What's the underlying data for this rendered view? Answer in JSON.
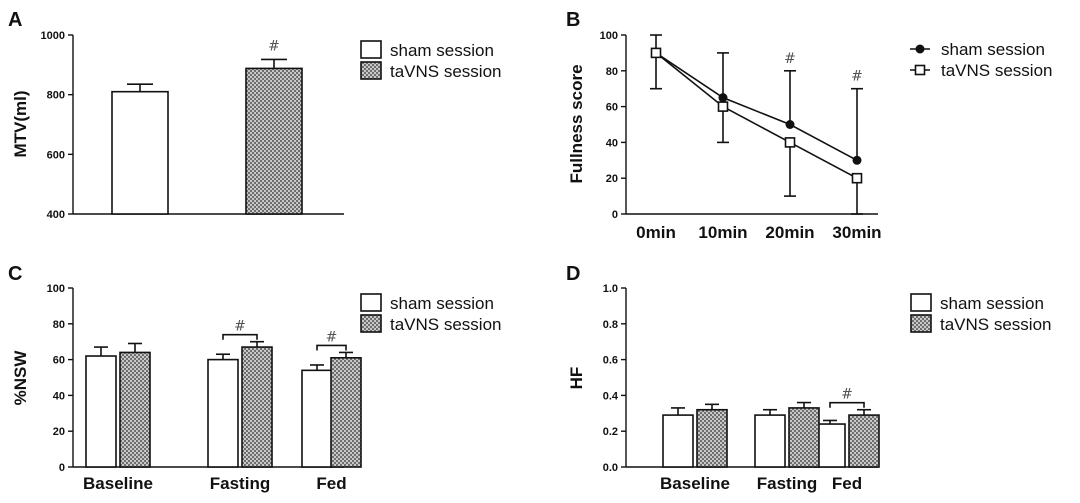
{
  "colors": {
    "ink": "#111111",
    "hatch": "#8a8a8a",
    "sig": "#555555"
  },
  "legend": {
    "sham": "sham session",
    "tavns": "taVNS session"
  },
  "sig_mark": "#",
  "panels": {
    "A": {
      "letter": "A"
    },
    "B": {
      "letter": "B"
    },
    "C": {
      "letter": "C"
    },
    "D": {
      "letter": "D"
    }
  },
  "chart_data": [
    {
      "panel": "A",
      "type": "bar",
      "ylabel": "MTV(ml)",
      "ylim": [
        400,
        1000
      ],
      "yticks": [
        400,
        600,
        800,
        1000
      ],
      "categories": [
        ""
      ],
      "series": [
        {
          "name": "sham session",
          "values": [
            810
          ],
          "errors": [
            25
          ]
        },
        {
          "name": "taVNS session",
          "values": [
            888
          ],
          "errors": [
            30
          ]
        }
      ],
      "annotations": [
        {
          "text": "#",
          "series": "taVNS session",
          "category": 0
        }
      ]
    },
    {
      "panel": "B",
      "type": "line",
      "ylabel": "Fullness score",
      "ylim": [
        0,
        100
      ],
      "yticks": [
        0,
        20,
        40,
        60,
        80,
        100
      ],
      "x": [
        "0min",
        "10min",
        "20min",
        "30min"
      ],
      "series": [
        {
          "name": "sham session",
          "marker": "circle",
          "values": [
            90,
            65,
            50,
            30
          ],
          "errors": [
            10,
            25,
            30,
            40
          ]
        },
        {
          "name": "taVNS session",
          "marker": "square",
          "values": [
            90,
            60,
            40,
            20
          ],
          "errors": [
            20,
            20,
            30,
            35
          ]
        }
      ],
      "annotations": [
        {
          "text": "#",
          "x": 2
        },
        {
          "text": "#",
          "x": 3
        }
      ]
    },
    {
      "panel": "C",
      "type": "bar",
      "ylabel": "%NSW",
      "ylim": [
        0,
        100
      ],
      "yticks": [
        0,
        20,
        40,
        60,
        80,
        100
      ],
      "categories": [
        "Baseline",
        "Fasting",
        "Fed"
      ],
      "series": [
        {
          "name": "sham session",
          "values": [
            62,
            60,
            54
          ],
          "errors": [
            5,
            3,
            3
          ]
        },
        {
          "name": "taVNS session",
          "values": [
            64,
            67,
            61
          ],
          "errors": [
            5,
            3,
            3
          ]
        }
      ],
      "annotations": [
        {
          "text": "#",
          "category": 1
        },
        {
          "text": "#",
          "category": 2
        }
      ]
    },
    {
      "panel": "D",
      "type": "bar",
      "ylabel": "HF",
      "ylim": [
        0,
        1.0
      ],
      "yticks": [
        0.0,
        0.2,
        0.4,
        0.6,
        0.8,
        1.0
      ],
      "tick_decimals": 1,
      "categories": [
        "Baseline",
        "Fasting",
        "Fed"
      ],
      "series": [
        {
          "name": "sham session",
          "values": [
            0.29,
            0.29,
            0.24
          ],
          "errors": [
            0.04,
            0.03,
            0.02
          ]
        },
        {
          "name": "taVNS session",
          "values": [
            0.32,
            0.33,
            0.29
          ],
          "errors": [
            0.03,
            0.03,
            0.03
          ]
        }
      ],
      "annotations": [
        {
          "text": "#",
          "category": 2
        }
      ]
    }
  ]
}
